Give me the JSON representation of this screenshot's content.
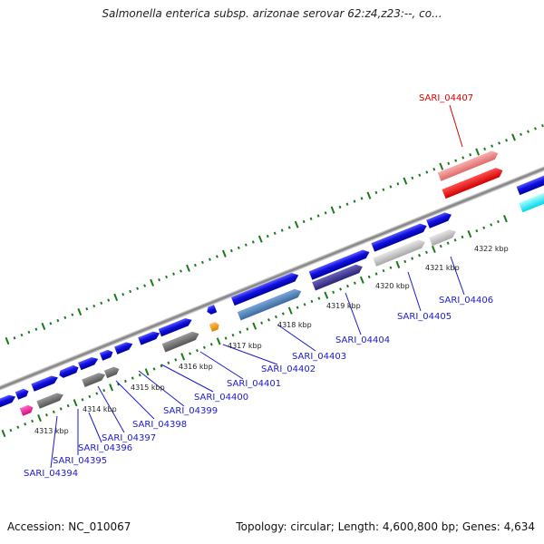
{
  "title": "Salmonella enterica subsp. arizonae serovar 62:z4,z23:--, co...",
  "footer": {
    "accession": "Accession: NC_010067",
    "summary": "Topology: circular; Length: 4,600,800 bp; Genes: 4,634"
  },
  "colors": {
    "forward_gene": "#1010e0",
    "highlight_gene": "#ff0000",
    "highlight_label": "#dd0000",
    "label": "#1a1ad0",
    "tick": "#1a7a1a",
    "backbone": "#888888"
  },
  "scale_labels": [
    "4313 kbp",
    "4314 kbp",
    "4315 kbp",
    "4316 kbp",
    "4317 kbp",
    "4318 kbp",
    "4319 kbp",
    "4320 kbp",
    "4321 kbp",
    "4322 kbp"
  ],
  "gene_labels": [
    {
      "name": "SARI_04394",
      "highlight": false
    },
    {
      "name": "SARI_04395",
      "highlight": false
    },
    {
      "name": "SARI_04396",
      "highlight": false
    },
    {
      "name": "SARI_04397",
      "highlight": false
    },
    {
      "name": "SARI_04398",
      "highlight": false
    },
    {
      "name": "SARI_04399",
      "highlight": false
    },
    {
      "name": "SARI_04400",
      "highlight": false
    },
    {
      "name": "SARI_04401",
      "highlight": false
    },
    {
      "name": "SARI_04402",
      "highlight": false
    },
    {
      "name": "SARI_04403",
      "highlight": false
    },
    {
      "name": "SARI_04404",
      "highlight": false
    },
    {
      "name": "SARI_04405",
      "highlight": false
    },
    {
      "name": "SARI_04406",
      "highlight": false
    },
    {
      "name": "SARI_04407",
      "highlight": true
    }
  ]
}
